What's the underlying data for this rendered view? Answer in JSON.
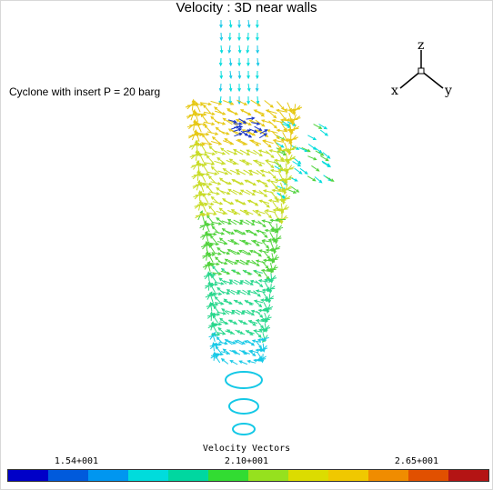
{
  "title": "Velocity : 3D near walls",
  "subtitle": "Cyclone with insert P = 20 barg",
  "axes": {
    "z": "z",
    "x": "x",
    "y": "y"
  },
  "legend": {
    "title": "Velocity Vectors",
    "ticks": [
      "1.54+001",
      "2.10+001",
      "2.65+001"
    ],
    "colors": [
      "#0000c8",
      "#005adc",
      "#0096f0",
      "#00dcdc",
      "#00d7a0",
      "#32dc32",
      "#96e11e",
      "#dcdc00",
      "#f0c800",
      "#f08c00",
      "#e15000",
      "#b41414"
    ]
  },
  "vector_palette": {
    "inlet": "#00dcdc",
    "top": "#e6c814",
    "upper": "#c8dc28",
    "middle": "#50d23c",
    "lower": "#28d78c",
    "bottom": "#14c8e6",
    "core": "#1432c8"
  }
}
